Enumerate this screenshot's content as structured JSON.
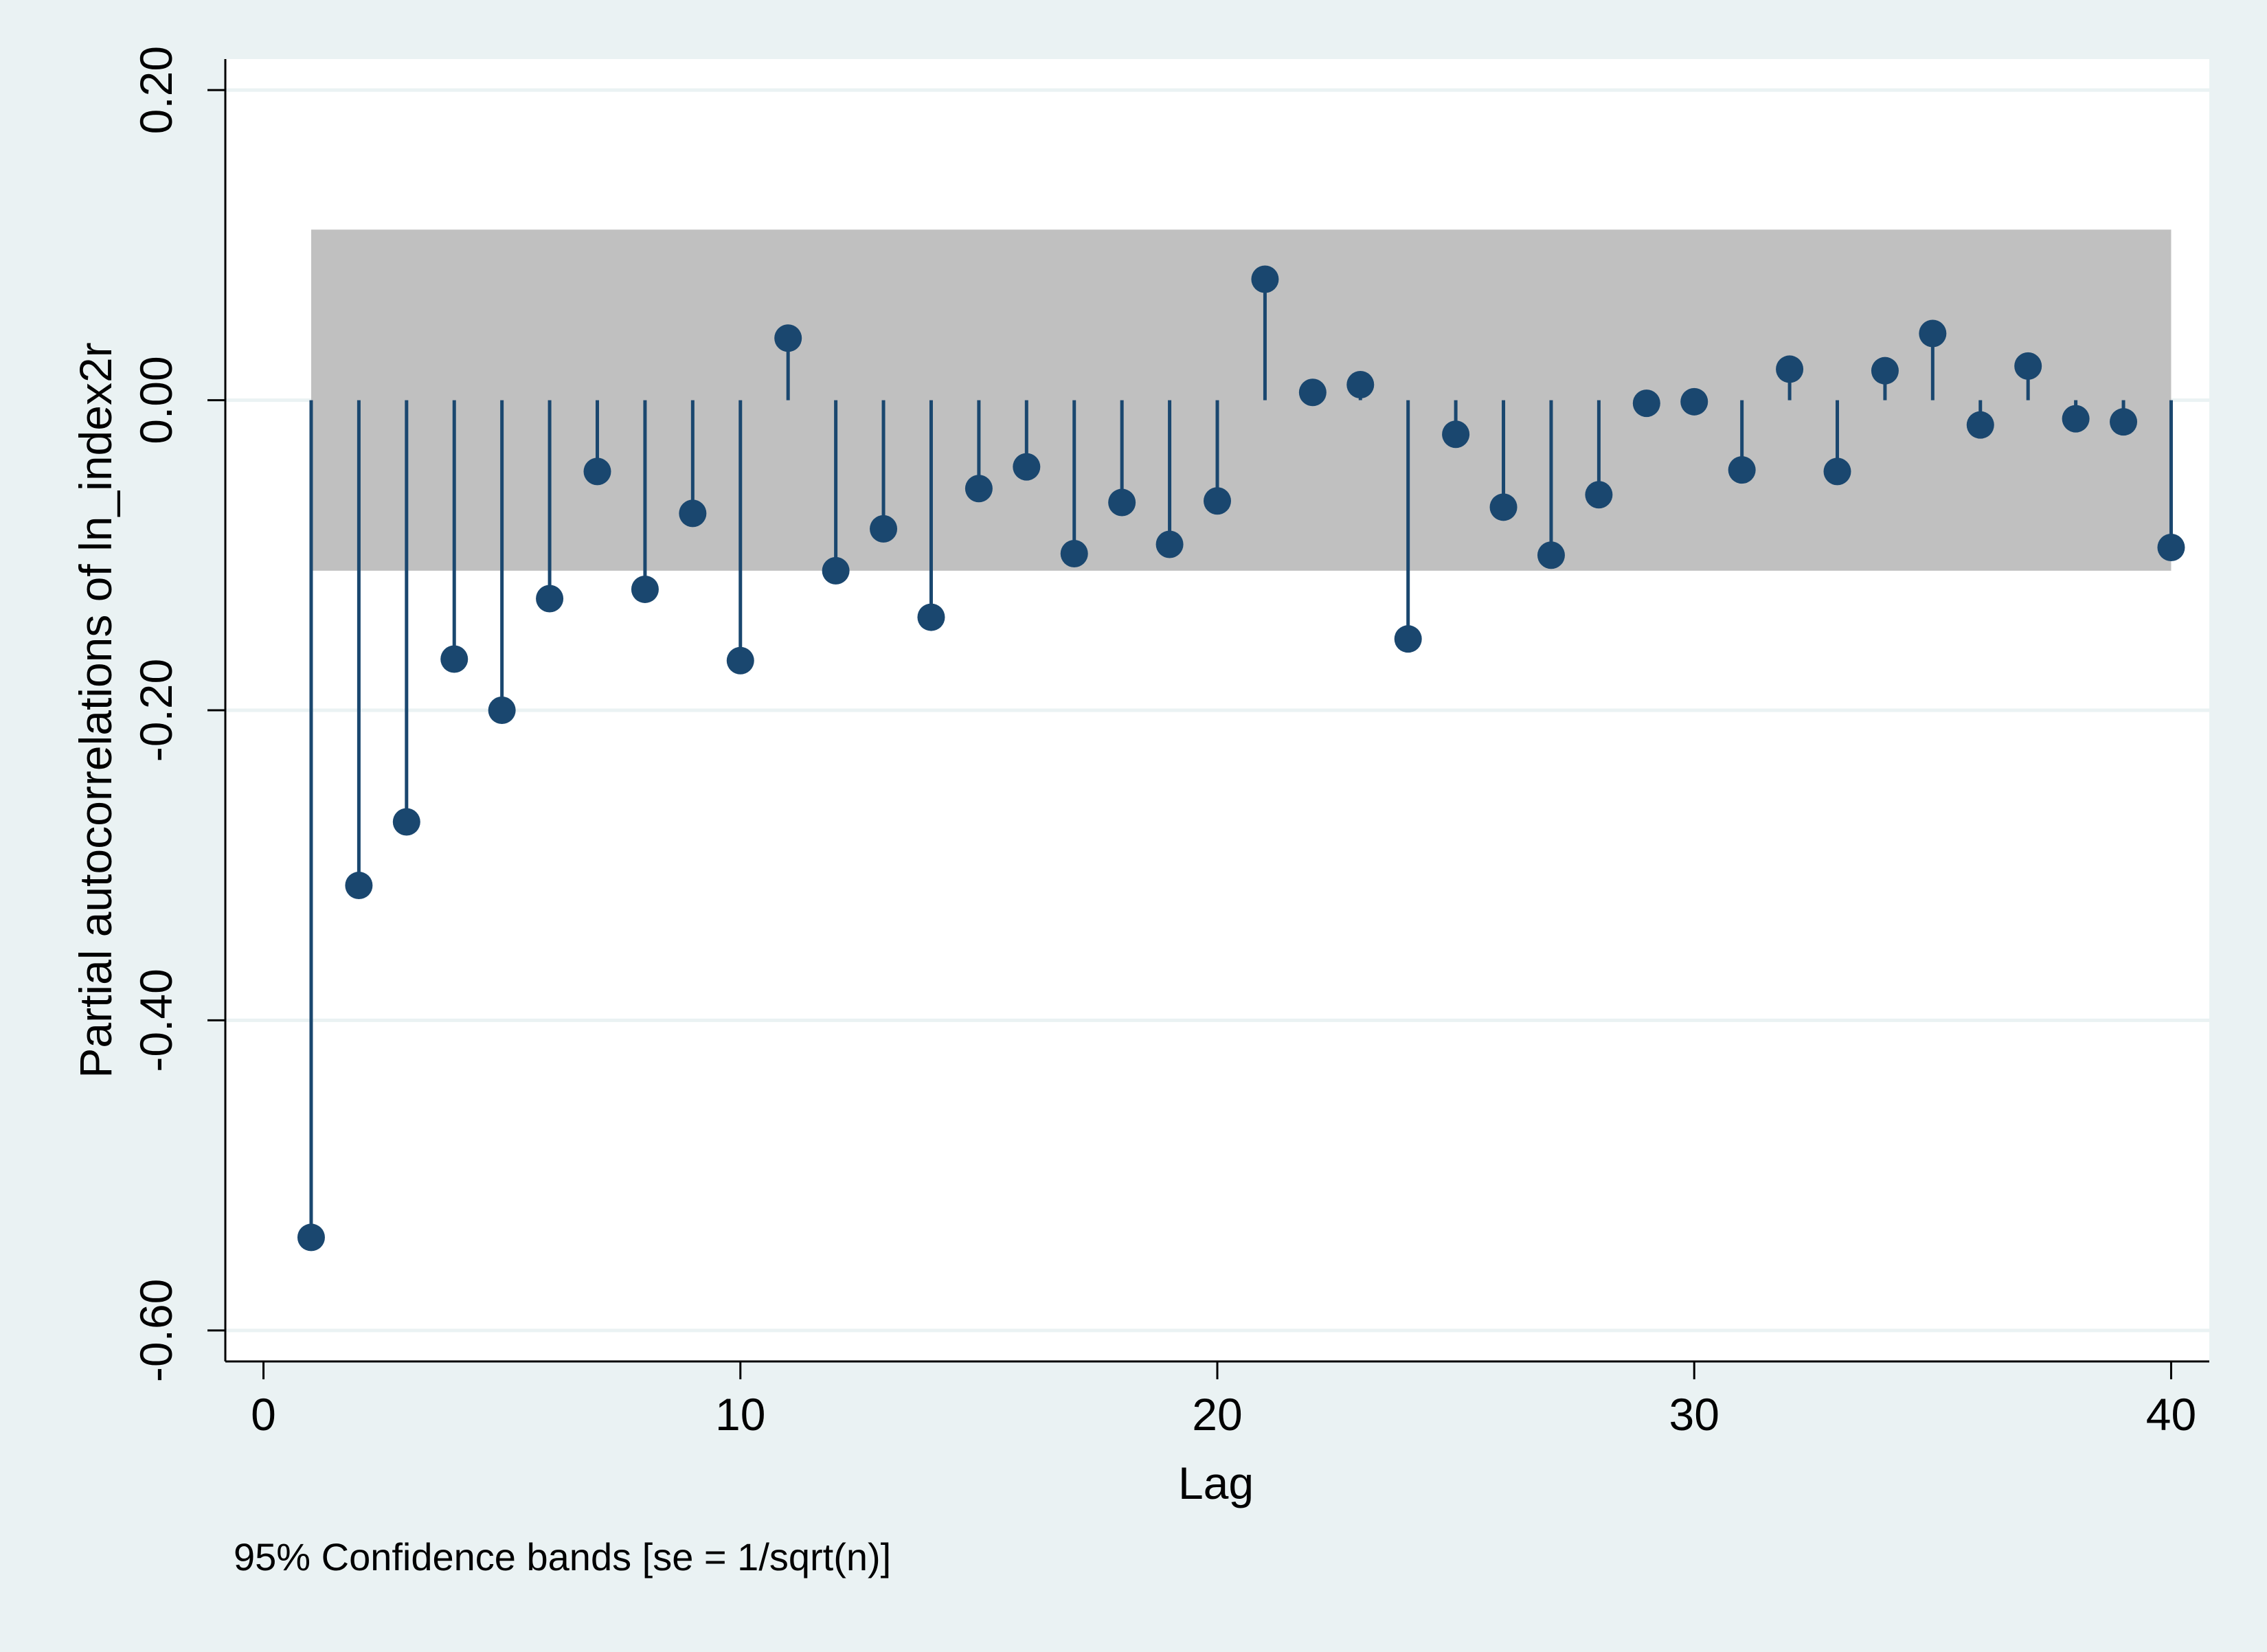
{
  "chart_data": {
    "type": "scatter",
    "title": "",
    "xlabel": "Lag",
    "ylabel": "Partial autocorrelations of ln_index2r",
    "note": "95% Confidence bands [se = 1/sqrt(n)]",
    "xlim": [
      -0.8,
      40.8
    ],
    "ylim": [
      -0.62,
      0.22
    ],
    "x_ticks": [
      0,
      10,
      20,
      30,
      40
    ],
    "x_tick_labels": [
      "0",
      "10",
      "20",
      "30",
      "40"
    ],
    "y_ticks": [
      -0.6,
      -0.4,
      -0.2,
      0.0,
      0.2
    ],
    "y_tick_labels": [
      "-0.60",
      "-0.40",
      "-0.20",
      "0.00",
      "0.20"
    ],
    "grid": true,
    "confidence_band": {
      "lower": -0.11,
      "upper": 0.11,
      "from_lag": 1,
      "to_lag": 40,
      "color": "#c0c0c0"
    },
    "marker_color": "#1a476f",
    "series": [
      {
        "x": [
          1,
          2,
          3,
          4,
          5,
          6,
          7,
          8,
          9,
          10,
          11,
          12,
          13,
          14,
          15,
          16,
          17,
          18,
          19,
          20,
          21,
          22,
          23,
          24,
          25,
          26,
          27,
          28,
          29,
          30,
          31,
          32,
          33,
          34,
          35,
          36,
          37,
          38,
          39,
          40
        ],
        "values": [
          -0.54,
          -0.313,
          -0.272,
          -0.167,
          -0.2,
          -0.128,
          -0.046,
          -0.122,
          -0.073,
          -0.168,
          0.04,
          -0.11,
          -0.083,
          -0.14,
          -0.057,
          -0.043,
          -0.099,
          -0.066,
          -0.093,
          -0.065,
          0.078,
          0.005,
          0.01,
          -0.154,
          -0.022,
          -0.069,
          -0.1,
          -0.061,
          -0.002,
          -0.001,
          -0.045,
          0.02,
          -0.046,
          0.019,
          0.043,
          -0.016,
          0.022,
          -0.012,
          -0.014,
          -0.095
        ]
      }
    ]
  }
}
